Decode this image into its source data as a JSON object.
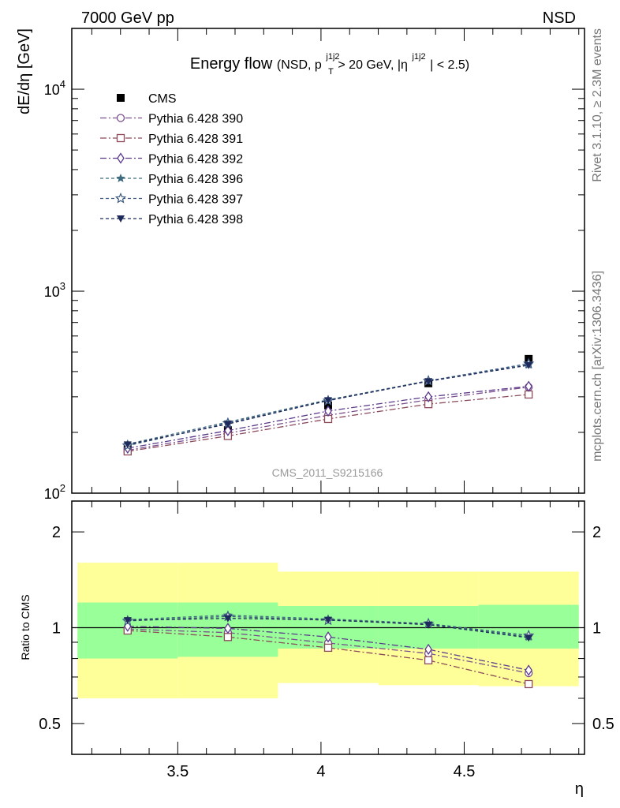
{
  "header": {
    "left": "7000 GeV pp",
    "right": "NSD"
  },
  "side_labels": {
    "rivet": "Rivet 3.1.10, ≥ 2.3M events",
    "mcplots": "mcplots.cern.ch [arXiv:1306.3436]"
  },
  "title": {
    "main": "Energy flow",
    "sub_a": "(NSD, p",
    "sup1": "j1j2",
    "sub1": "T",
    "sub_b": " > 20 GeV, |η",
    "sup2": "j1j2",
    "sub_c": "| < 2.5)"
  },
  "reference_id": "CMS_2011_S9215166",
  "colors": {
    "cms": "#000000",
    "p390": "#7b4f8e",
    "p391": "#8c4a5a",
    "p392": "#5b3a8c",
    "p396": "#3f6b7e",
    "p397": "#3d5a80",
    "p398": "#1f2a5c",
    "band_inner": "#99ff99",
    "band_outer": "#ffff99"
  },
  "chart_data": {
    "type": "line",
    "xlabel": "η",
    "ylabel": "dE/dη [GeV]",
    "ratio_ylabel": "Ratio to CMS",
    "xlim": [
      3.13,
      4.92
    ],
    "ylim": [
      100,
      20000
    ],
    "ratio_ylim": [
      0.4,
      2.5
    ],
    "log_y": true,
    "x_ticks": [
      "3.5",
      "4",
      "4.5"
    ],
    "y_ticks": [
      "10^2",
      "10^3",
      "10^4"
    ],
    "ratio_ticks": [
      "0.5",
      "1",
      "2"
    ],
    "legend_position": "top-left",
    "x": [
      3.325,
      3.675,
      4.025,
      4.375,
      4.725
    ],
    "bins": [
      [
        3.15,
        3.5
      ],
      [
        3.5,
        3.85
      ],
      [
        3.85,
        4.2
      ],
      [
        4.2,
        4.55
      ],
      [
        4.55,
        4.9
      ]
    ],
    "series": [
      {
        "name": "CMS",
        "style": "cms",
        "marker": "square-filled",
        "values": [
          165,
          205,
          272,
          350,
          462
        ]
      },
      {
        "name": "Pythia 6.428 390",
        "style": "p390",
        "marker": "circle-open",
        "values": [
          163,
          198,
          243,
          290,
          335
        ]
      },
      {
        "name": "Pythia 6.428 391",
        "style": "p391",
        "marker": "square-open",
        "values": [
          161,
          192,
          233,
          276,
          308
        ]
      },
      {
        "name": "Pythia 6.428 392",
        "style": "p392",
        "marker": "diamond-open",
        "values": [
          167,
          204,
          255,
          300,
          338
        ]
      },
      {
        "name": "Pythia 6.428 396",
        "style": "p396",
        "marker": "star-filled",
        "values": [
          175,
          225,
          290,
          360,
          432
        ]
      },
      {
        "name": "Pythia 6.428 397",
        "style": "p397",
        "marker": "star-open",
        "values": [
          172,
          222,
          287,
          360,
          438
        ]
      },
      {
        "name": "Pythia 6.428 398",
        "style": "p398",
        "marker": "triangle-down-filled",
        "values": [
          174,
          220,
          288,
          358,
          430
        ]
      }
    ],
    "ratio_series": [
      {
        "name": "Pythia 6.428 390",
        "style": "p390",
        "marker": "circle-open",
        "values": [
          0.99,
          0.965,
          0.895,
          0.83,
          0.72
        ]
      },
      {
        "name": "Pythia 6.428 391",
        "style": "p391",
        "marker": "square-open",
        "values": [
          0.98,
          0.935,
          0.865,
          0.79,
          0.665
        ]
      },
      {
        "name": "Pythia 6.428 392",
        "style": "p392",
        "marker": "diamond-open",
        "values": [
          1.01,
          0.995,
          0.935,
          0.855,
          0.735
        ]
      },
      {
        "name": "Pythia 6.428 396",
        "style": "p396",
        "marker": "star-filled",
        "values": [
          1.06,
          1.095,
          1.065,
          1.03,
          0.935
        ]
      },
      {
        "name": "Pythia 6.428 397",
        "style": "p397",
        "marker": "star-open",
        "values": [
          1.05,
          1.085,
          1.055,
          1.03,
          0.945
        ]
      },
      {
        "name": "Pythia 6.428 398",
        "style": "p398",
        "marker": "triangle-down-filled",
        "values": [
          1.055,
          1.07,
          1.058,
          1.022,
          0.93
        ]
      }
    ],
    "ratio_bands": {
      "inner": [
        [
          0.8,
          1.2
        ],
        [
          0.81,
          1.2
        ],
        [
          0.86,
          1.17
        ],
        [
          0.86,
          1.17
        ],
        [
          0.86,
          1.18
        ]
      ],
      "outer": [
        [
          0.6,
          1.6
        ],
        [
          0.6,
          1.6
        ],
        [
          0.67,
          1.5
        ],
        [
          0.66,
          1.5
        ],
        [
          0.655,
          1.5
        ]
      ]
    }
  }
}
